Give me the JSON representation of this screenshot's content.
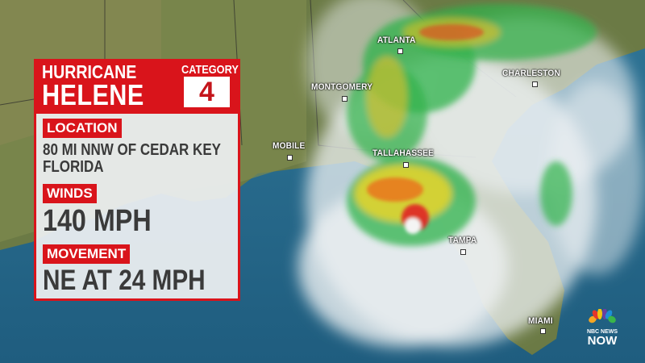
{
  "card": {
    "title_line1": "HURRICANE",
    "title_line2": "HELENE",
    "category_label": "CATEGORY",
    "category_value": "4",
    "location_label": "LOCATION",
    "location_line1": "80 MI NNW OF CEDAR KEY",
    "location_line2": "FLORIDA",
    "winds_label": "WINDS",
    "winds_value": "140 MPH",
    "movement_label": "MOVEMENT",
    "movement_value": "NE AT 24 MPH",
    "accent_color": "#d9141b"
  },
  "map": {
    "cities": [
      {
        "name": "ATLANTA"
      },
      {
        "name": "MONTGOMERY"
      },
      {
        "name": "CHARLESTON"
      },
      {
        "name": "MOBILE"
      },
      {
        "name": "TALLAHASSEE"
      },
      {
        "name": "TAMPA"
      },
      {
        "name": "MIAMI"
      }
    ]
  },
  "logo": {
    "line1": "NBC NEWS",
    "line2": "NOW"
  }
}
